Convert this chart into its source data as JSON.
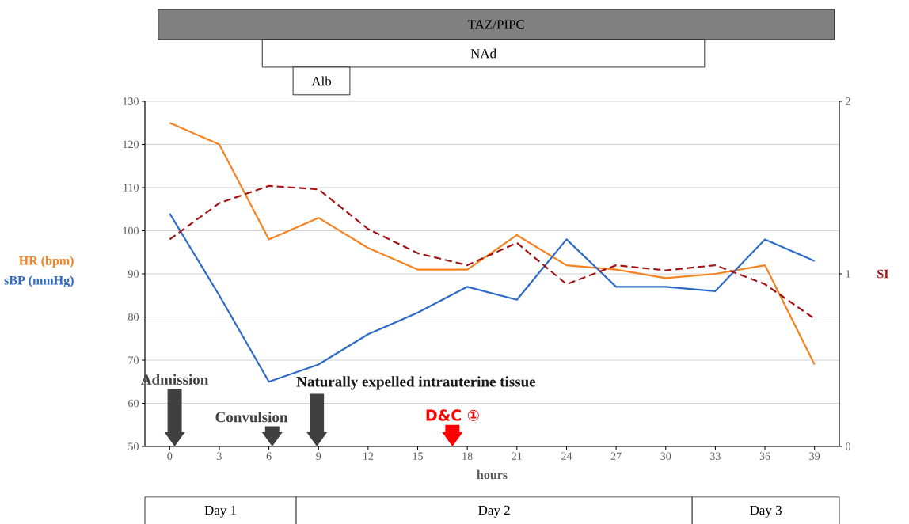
{
  "chart_data": {
    "type": "line",
    "xlabel": "hours",
    "x": [
      0,
      3,
      6,
      9,
      12,
      15,
      18,
      21,
      24,
      27,
      30,
      33,
      36,
      39
    ],
    "xlim": [
      -1.5,
      40.5
    ],
    "xticks": [
      0,
      3,
      6,
      9,
      12,
      15,
      18,
      21,
      24,
      27,
      30,
      33,
      36,
      39
    ],
    "ylim": [
      50,
      130
    ],
    "yticks": [
      50,
      60,
      70,
      80,
      90,
      100,
      110,
      120,
      130
    ],
    "y2lim": [
      0,
      2
    ],
    "y2ticks": [
      0,
      1,
      2
    ],
    "grid": "y",
    "marker": "none",
    "series": [
      {
        "name": "HR (bpm)",
        "color": "#f58220",
        "values": [
          125,
          120,
          98,
          103,
          96,
          91,
          91,
          99,
          92,
          91,
          89,
          90,
          92,
          69
        ]
      },
      {
        "name": "sBP (mmHg)",
        "color": "#2e6bc6",
        "values": [
          104,
          85,
          65,
          69,
          76,
          81,
          87,
          84,
          98,
          87,
          87,
          86,
          98,
          93
        ]
      },
      {
        "name": "SI",
        "color": "#a31515",
        "axis": "y2",
        "line_style": "dashed",
        "values": [
          1.2,
          1.41,
          1.51,
          1.49,
          1.26,
          1.12,
          1.05,
          1.18,
          0.94,
          1.05,
          1.02,
          1.05,
          0.94,
          0.74
        ]
      }
    ],
    "annotations": [
      "Admission",
      "Convulsion",
      "Naturally expelled intrauterine tissue",
      "D&C ①",
      "TAZ/PIPC",
      "NAd",
      "Alb",
      "Day 1",
      "Day 2",
      "Day 3"
    ]
  }
}
